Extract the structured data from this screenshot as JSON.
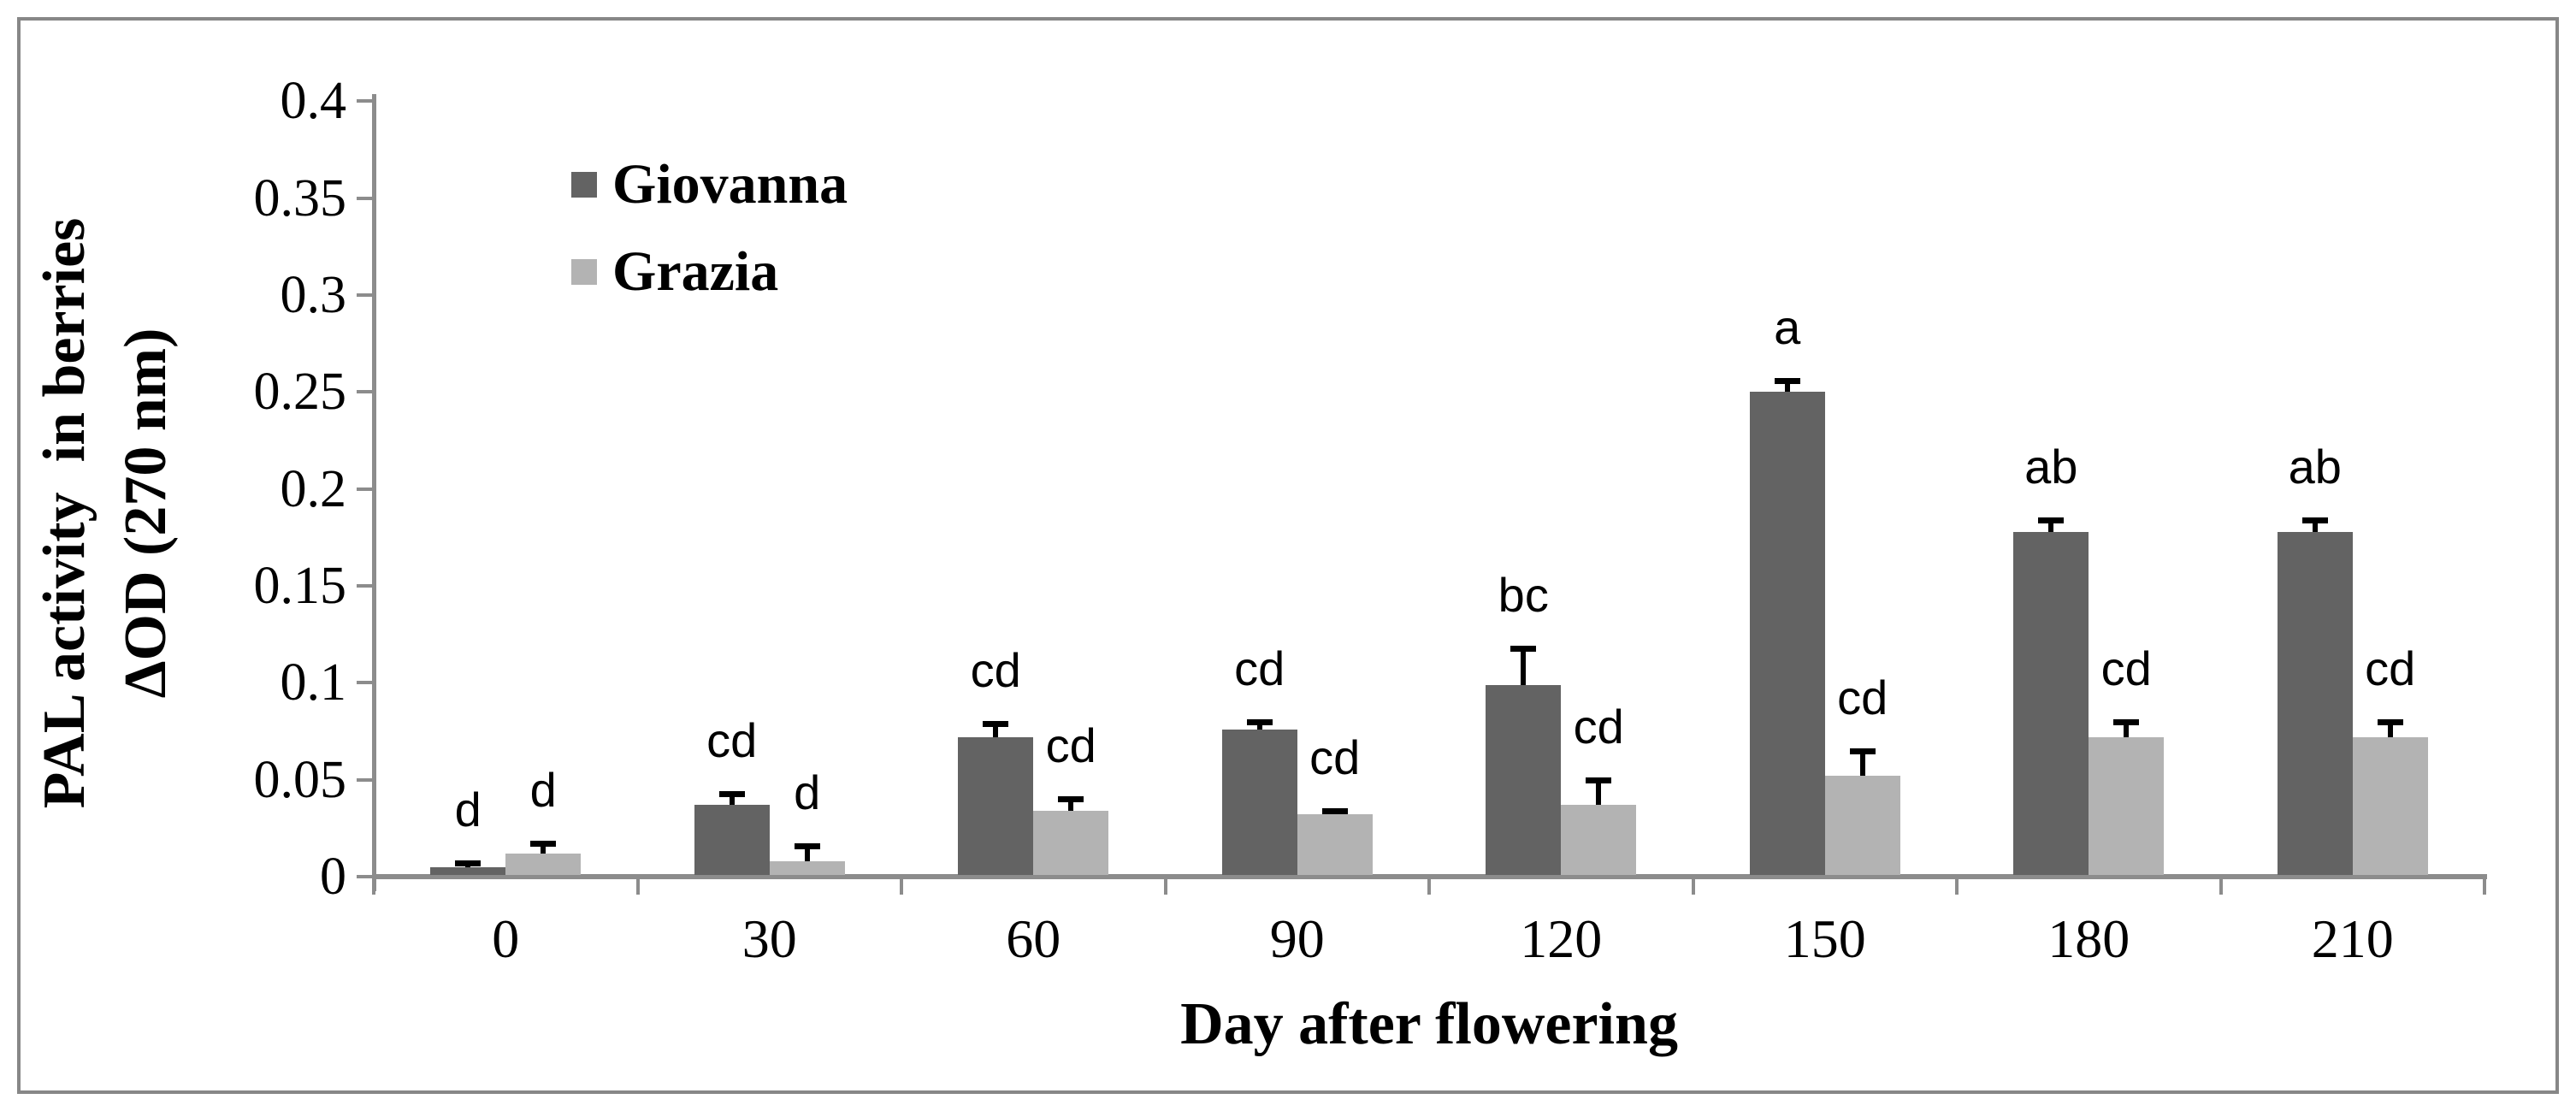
{
  "chart_data": {
    "type": "bar",
    "title": "",
    "xlabel": "Day after flowering",
    "ylabel_line1": "PAL activity  in berries",
    "ylabel_line2": "ΔOD (270 nm)",
    "categories": [
      "0",
      "30",
      "60",
      "90",
      "120",
      "150",
      "180",
      "210"
    ],
    "y_ticks": [
      "0",
      "0.05",
      "0.1",
      "0.15",
      "0.2",
      "0.25",
      "0.3",
      "0.35",
      "0.4"
    ],
    "ylim": [
      0,
      0.4
    ],
    "grid": false,
    "legend_position": "inside-top-left",
    "axis_color": "#8c8c8c",
    "frame_color": "#878787",
    "error_bar_color": "#000000",
    "series": [
      {
        "name": "Giovanna",
        "color": "#636363",
        "values": [
          0.005,
          0.037,
          0.072,
          0.076,
          0.099,
          0.25,
          0.178,
          0.178
        ],
        "errors": [
          0.002,
          0.006,
          0.007,
          0.004,
          0.019,
          0.006,
          0.006,
          0.006
        ],
        "letters": [
          "d",
          "cd",
          "cd",
          "cd",
          "bc",
          "a",
          "ab",
          "ab"
        ]
      },
      {
        "name": "Grazia",
        "color": "#b3b3b3",
        "values": [
          0.012,
          0.008,
          0.034,
          0.032,
          0.037,
          0.052,
          0.072,
          0.072
        ],
        "errors": [
          0.005,
          0.008,
          0.006,
          0.002,
          0.013,
          0.013,
          0.008,
          0.008
        ],
        "letters": [
          "d",
          "d",
          "cd",
          "cd",
          "cd",
          "cd",
          "cd",
          "cd"
        ]
      }
    ]
  }
}
